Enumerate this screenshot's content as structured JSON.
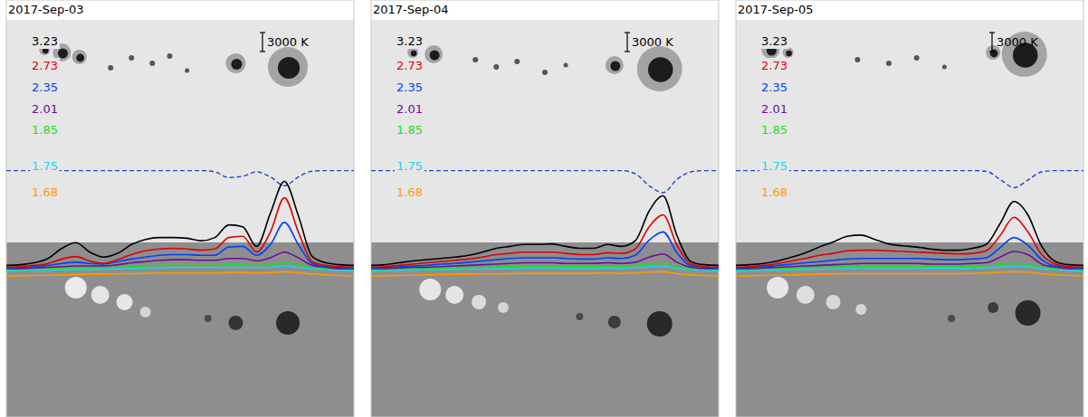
{
  "chart_data": [
    {
      "type": "line",
      "title": "2017-Sep-03",
      "tick_labels": false,
      "x": [
        0,
        4,
        8,
        12,
        16,
        20,
        24,
        28,
        32,
        36,
        40,
        44,
        48,
        52,
        56,
        60,
        64,
        68,
        72,
        76,
        80,
        84,
        88,
        92,
        96,
        100
      ],
      "xlim": [
        0,
        100
      ],
      "ylim": [
        -23000,
        43000
      ],
      "scale_bar": {
        "value": 3000,
        "label": "3000 K"
      },
      "series": [
        {
          "name": "3.23",
          "color": "#000000",
          "values": [
            1000,
            1100,
            1400,
            2100,
            3700,
            4600,
            3100,
            2300,
            2900,
            4300,
            5100,
            5400,
            5400,
            5300,
            4900,
            5400,
            7400,
            7100,
            4000,
            9300,
            14300,
            8900,
            2400,
            1400,
            1100,
            1000
          ]
        },
        {
          "name": "2.73",
          "color": "#e00000",
          "values": [
            700,
            800,
            1000,
            1300,
            2000,
            2400,
            1700,
            1300,
            1900,
            2700,
            3300,
            3600,
            3700,
            3600,
            3400,
            3600,
            5400,
            5600,
            3100,
            6300,
            11700,
            6300,
            1600,
            1000,
            800,
            700
          ]
        },
        {
          "name": "2.35",
          "color": "#0040ff",
          "values": [
            600,
            700,
            800,
            1000,
            1300,
            1500,
            1300,
            1200,
            1600,
            2000,
            2300,
            2600,
            2700,
            2700,
            2600,
            2600,
            3900,
            4000,
            2600,
            4300,
            7800,
            4300,
            1300,
            800,
            700,
            600
          ]
        },
        {
          "name": "2.01",
          "color": "#6a0f9a",
          "values": [
            500,
            500,
            600,
            700,
            800,
            900,
            900,
            900,
            1100,
            1400,
            1600,
            1800,
            1900,
            1900,
            1800,
            1800,
            2100,
            2100,
            1700,
            2200,
            3100,
            2200,
            1000,
            700,
            500,
            500
          ]
        },
        {
          "name": "1.85",
          "color": "#22dd22",
          "values": [
            300,
            350,
            400,
            450,
            550,
            600,
            600,
            650,
            700,
            800,
            900,
            1000,
            1000,
            1000,
            1000,
            1000,
            1100,
            1100,
            1000,
            1100,
            1400,
            1100,
            700,
            500,
            400,
            300
          ]
        },
        {
          "name": "1.75",
          "color": "#22d0f0",
          "values": [
            100,
            150,
            200,
            250,
            300,
            350,
            350,
            400,
            450,
            500,
            550,
            600,
            650,
            650,
            650,
            650,
            700,
            700,
            650,
            700,
            900,
            700,
            450,
            300,
            200,
            100
          ]
        },
        {
          "name": "1.68",
          "color": "#ff9900",
          "values": [
            -700,
            -650,
            -600,
            -550,
            -500,
            -450,
            -400,
            -400,
            -350,
            -300,
            -250,
            -200,
            -200,
            -200,
            -200,
            -200,
            -150,
            -150,
            -200,
            -150,
            0,
            -150,
            -350,
            -500,
            -600,
            -700
          ]
        },
        {
          "color": "#2244cc",
          "line_style": "dashed",
          "values": [
            16000,
            16000,
            16000,
            16000,
            16000,
            16000,
            16000,
            16000,
            16000,
            16000,
            16000,
            16000,
            16000,
            16000,
            16000,
            15800,
            14900,
            15100,
            15800,
            15000,
            13600,
            15000,
            15900,
            16000,
            16000,
            16000
          ]
        }
      ]
    },
    {
      "type": "line",
      "title": "2017-Sep-04",
      "tick_labels": false,
      "x": [
        0,
        4,
        8,
        12,
        16,
        20,
        24,
        28,
        32,
        36,
        40,
        44,
        48,
        52,
        56,
        60,
        64,
        68,
        72,
        76,
        80,
        84,
        88,
        92,
        96,
        100
      ],
      "xlim": [
        0,
        100
      ],
      "ylim": [
        -23000,
        43000
      ],
      "scale_bar": {
        "value": 3000,
        "label": "3000 K"
      },
      "series": [
        {
          "name": "3.23",
          "color": "#000000",
          "values": [
            1000,
            1100,
            1400,
            1700,
            1900,
            2100,
            2300,
            2600,
            3100,
            3700,
            4000,
            4300,
            4300,
            4400,
            4000,
            3700,
            3700,
            4300,
            4000,
            4900,
            9600,
            12000,
            5700,
            1600,
            1100,
            1000
          ]
        },
        {
          "name": "2.73",
          "color": "#e00000",
          "values": [
            700,
            800,
            1000,
            1200,
            1400,
            1600,
            1800,
            2000,
            2300,
            2700,
            2900,
            3100,
            3100,
            3100,
            2900,
            2700,
            2700,
            3000,
            2900,
            3600,
            7100,
            9000,
            4200,
            1200,
            800,
            700
          ]
        },
        {
          "name": "2.35",
          "color": "#0040ff",
          "values": [
            600,
            700,
            800,
            900,
            1000,
            1200,
            1300,
            1500,
            1700,
            1900,
            2100,
            2200,
            2200,
            2200,
            2100,
            2000,
            2000,
            2200,
            2100,
            2600,
            5000,
            6300,
            3000,
            900,
            700,
            600
          ]
        },
        {
          "name": "2.01",
          "color": "#6a0f9a",
          "values": [
            500,
            500,
            600,
            700,
            700,
            800,
            900,
            1000,
            1100,
            1200,
            1300,
            1400,
            1400,
            1400,
            1300,
            1300,
            1300,
            1400,
            1300,
            1500,
            2300,
            2800,
            1500,
            700,
            500,
            500
          ]
        },
        {
          "name": "1.85",
          "color": "#22dd22",
          "values": [
            300,
            350,
            400,
            450,
            500,
            550,
            600,
            650,
            700,
            750,
            800,
            850,
            850,
            850,
            850,
            850,
            850,
            900,
            850,
            1000,
            1200,
            1300,
            800,
            500,
            400,
            300
          ]
        },
        {
          "name": "1.75",
          "color": "#22d0f0",
          "values": [
            100,
            150,
            200,
            250,
            300,
            300,
            350,
            400,
            450,
            450,
            500,
            550,
            550,
            550,
            550,
            550,
            550,
            600,
            550,
            650,
            800,
            850,
            500,
            300,
            200,
            100
          ]
        },
        {
          "name": "1.68",
          "color": "#ff9900",
          "values": [
            -700,
            -650,
            -600,
            -550,
            -500,
            -450,
            -400,
            -400,
            -350,
            -350,
            -300,
            -250,
            -250,
            -250,
            -250,
            -250,
            -250,
            -200,
            -250,
            -200,
            -50,
            0,
            -300,
            -500,
            -600,
            -700
          ]
        },
        {
          "color": "#2244cc",
          "line_style": "dashed",
          "values": [
            16000,
            16000,
            16000,
            16000,
            16000,
            16000,
            16000,
            16000,
            16000,
            16000,
            16000,
            16000,
            16000,
            16000,
            16000,
            16000,
            16000,
            16000,
            16000,
            15500,
            13600,
            12500,
            14600,
            15800,
            16000,
            16000
          ]
        }
      ]
    },
    {
      "type": "line",
      "title": "2017-Sep-05",
      "tick_labels": false,
      "x": [
        0,
        4,
        8,
        12,
        16,
        20,
        24,
        28,
        32,
        36,
        40,
        44,
        48,
        52,
        56,
        60,
        64,
        68,
        72,
        76,
        80,
        84,
        88,
        92,
        96,
        100
      ],
      "xlim": [
        0,
        100
      ],
      "ylim": [
        -23000,
        43000
      ],
      "scale_bar": {
        "value": 3000,
        "label": "3000 K"
      },
      "series": [
        {
          "name": "3.23",
          "color": "#000000",
          "values": [
            1000,
            1100,
            1300,
            1700,
            2300,
            3000,
            3900,
            4700,
            5600,
            5800,
            5100,
            4400,
            4100,
            3900,
            3600,
            3400,
            3400,
            3700,
            4300,
            7600,
            11100,
            9000,
            4000,
            1600,
            1100,
            1000
          ]
        },
        {
          "name": "2.73",
          "color": "#e00000",
          "values": [
            700,
            800,
            1000,
            1300,
            1700,
            2100,
            2600,
            2900,
            3300,
            3400,
            3400,
            3300,
            3200,
            3100,
            3000,
            2900,
            2800,
            2900,
            3300,
            5700,
            8600,
            6300,
            2700,
            1200,
            800,
            700
          ]
        },
        {
          "name": "2.35",
          "color": "#0040ff",
          "values": [
            600,
            700,
            800,
            1000,
            1200,
            1400,
            1600,
            1800,
            2000,
            2100,
            2100,
            2100,
            2100,
            2100,
            2000,
            1900,
            1900,
            2000,
            2200,
            3800,
            5400,
            4200,
            1900,
            900,
            700,
            600
          ]
        },
        {
          "name": "2.01",
          "color": "#6a0f9a",
          "values": [
            500,
            500,
            600,
            700,
            800,
            900,
            1000,
            1100,
            1200,
            1300,
            1300,
            1300,
            1300,
            1300,
            1200,
            1200,
            1200,
            1300,
            1400,
            2300,
            3200,
            2700,
            1200,
            700,
            500,
            500
          ]
        },
        {
          "name": "1.85",
          "color": "#22dd22",
          "values": [
            300,
            350,
            400,
            450,
            550,
            600,
            700,
            750,
            800,
            850,
            850,
            850,
            850,
            850,
            800,
            800,
            800,
            850,
            900,
            1100,
            1300,
            1200,
            700,
            500,
            400,
            300
          ]
        },
        {
          "name": "1.75",
          "color": "#22d0f0",
          "values": [
            100,
            150,
            200,
            250,
            300,
            350,
            400,
            450,
            500,
            550,
            550,
            550,
            550,
            550,
            500,
            500,
            500,
            550,
            600,
            750,
            850,
            800,
            450,
            300,
            200,
            100
          ]
        },
        {
          "name": "1.68",
          "color": "#ff9900",
          "values": [
            -700,
            -650,
            -600,
            -550,
            -500,
            -450,
            -400,
            -350,
            -300,
            -300,
            -300,
            -300,
            -300,
            -300,
            -300,
            -300,
            -300,
            -250,
            -200,
            -100,
            0,
            -50,
            -350,
            -500,
            -600,
            -700
          ]
        },
        {
          "color": "#2244cc",
          "line_style": "dashed",
          "values": [
            16000,
            16000,
            16000,
            16000,
            16000,
            16000,
            16000,
            16000,
            16000,
            16000,
            16000,
            16000,
            16000,
            16000,
            16000,
            16000,
            16000,
            16000,
            15900,
            14600,
            13300,
            14500,
            15800,
            16000,
            16000,
            16000
          ]
        }
      ]
    }
  ]
}
